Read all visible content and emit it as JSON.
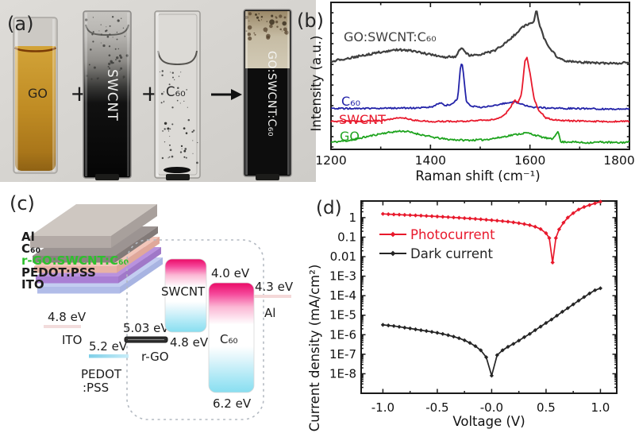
{
  "figure": {
    "background": "#ffffff",
    "panel_labels": {
      "a": "(a)",
      "b": "(b)",
      "c": "(c)",
      "d": "(d)"
    }
  },
  "panel_a": {
    "cuvettes": [
      {
        "label": "GO",
        "liquid_color": "#c08c24"
      },
      {
        "label": "SWCNT",
        "liquid_color": "#0a0a0a"
      },
      {
        "label": "C₆₀",
        "liquid_color": "#dcdad6"
      },
      {
        "label": "GO:SWCNT:C₆₀",
        "liquid_color": "#0d0d0d"
      }
    ],
    "operators": {
      "plus1": "+",
      "plus2": "+",
      "arrow_icon": "arrow-right"
    }
  },
  "panel_c": {
    "stack_layers": [
      {
        "label": "ITO",
        "label_color": "#1c1c1c",
        "top_color": "#c3cdf1",
        "front_color": "#b1bce8",
        "side_color": "#a8b4e2"
      },
      {
        "label": "PEDOT:PSS",
        "label_color": "#1c1c1c",
        "top_color": "#b992de",
        "front_color": "#a97fd4",
        "side_color": "#a078c8"
      },
      {
        "label": "r-GO:SWCNT:C₆₀",
        "label_color": "#2dc12d",
        "top_color": "#f2c6ba",
        "front_color": "#e8b2a6",
        "side_color": "#e0a89a"
      },
      {
        "label": "C₆₀",
        "label_color": "#1c1c1c",
        "top_color": "#9c9492",
        "front_color": "#8a8280",
        "side_color": "#827a78"
      },
      {
        "label": "Al",
        "label_color": "#1c1c1c",
        "top_color": "#cec7c1",
        "front_color": "#b3aaa6",
        "side_color": "#a8a09c"
      }
    ],
    "energy": {
      "ito": {
        "value": "4.8 eV",
        "label": "ITO"
      },
      "pedot": {
        "value": "5.2 eV",
        "label1": "PEDOT",
        "label2": ":PSS"
      },
      "rgo": {
        "value_top": "5.03 eV",
        "value_right": "4.8 eV",
        "label": "r-GO"
      },
      "swcnt": {
        "label": "SWCNT"
      },
      "c60": {
        "value_top": "4.0 eV",
        "value_bottom": "6.2 eV",
        "label": "C₆₀"
      },
      "al": {
        "value": "4.3 eV",
        "label": "Al"
      }
    },
    "box_gradient": {
      "top": "#ea0a66",
      "bottom": "#88def0"
    }
  },
  "chart_data": [
    {
      "id": "raman",
      "type": "line",
      "title": "",
      "xlabel": "Raman shift (cm⁻¹)",
      "ylabel": "Intensity (a.u.)",
      "xlim": [
        1200,
        1800
      ],
      "xticks": [
        1200,
        1400,
        1600,
        1800
      ],
      "xticks_minor": [
        1300,
        1500,
        1700
      ],
      "ylim": [
        0,
        1
      ],
      "grid": false,
      "legend_position": "inline-left",
      "series": [
        {
          "name": "GO",
          "color": "#1fa41f",
          "noise": 0.006,
          "width": 1.8,
          "points": [
            [
              1200,
              0.048
            ],
            [
              1235,
              0.06
            ],
            [
              1270,
              0.085
            ],
            [
              1305,
              0.11
            ],
            [
              1340,
              0.125
            ],
            [
              1352,
              0.122
            ],
            [
              1375,
              0.105
            ],
            [
              1405,
              0.082
            ],
            [
              1435,
              0.068
            ],
            [
              1470,
              0.062
            ],
            [
              1505,
              0.065
            ],
            [
              1535,
              0.078
            ],
            [
              1565,
              0.098
            ],
            [
              1592,
              0.112
            ],
            [
              1600,
              0.108
            ],
            [
              1622,
              0.085
            ],
            [
              1645,
              0.068
            ],
            [
              1656,
              0.125
            ],
            [
              1662,
              0.05
            ],
            [
              1680,
              0.052
            ],
            [
              1710,
              0.045
            ],
            [
              1745,
              0.05
            ],
            [
              1775,
              0.045
            ],
            [
              1800,
              0.05
            ]
          ]
        },
        {
          "name": "C₆₀",
          "color": "#2222a8",
          "noise": 0.005,
          "width": 1.8,
          "points": [
            [
              1200,
              0.278
            ],
            [
              1260,
              0.278
            ],
            [
              1320,
              0.28
            ],
            [
              1380,
              0.282
            ],
            [
              1405,
              0.29
            ],
            [
              1420,
              0.318
            ],
            [
              1430,
              0.298
            ],
            [
              1445,
              0.31
            ],
            [
              1455,
              0.35
            ],
            [
              1460,
              0.55
            ],
            [
              1463,
              0.6
            ],
            [
              1466,
              0.52
            ],
            [
              1472,
              0.33
            ],
            [
              1480,
              0.295
            ],
            [
              1500,
              0.285
            ],
            [
              1530,
              0.3
            ],
            [
              1552,
              0.315
            ],
            [
              1568,
              0.325
            ],
            [
              1585,
              0.305
            ],
            [
              1605,
              0.288
            ],
            [
              1640,
              0.28
            ],
            [
              1700,
              0.278
            ],
            [
              1750,
              0.275
            ],
            [
              1800,
              0.275
            ]
          ]
        },
        {
          "name": "SWCNT",
          "color": "#e8192c",
          "noise": 0.005,
          "width": 1.8,
          "points": [
            [
              1200,
              0.19
            ],
            [
              1250,
              0.192
            ],
            [
              1300,
              0.196
            ],
            [
              1330,
              0.212
            ],
            [
              1345,
              0.215
            ],
            [
              1365,
              0.198
            ],
            [
              1400,
              0.19
            ],
            [
              1450,
              0.19
            ],
            [
              1500,
              0.196
            ],
            [
              1530,
              0.205
            ],
            [
              1550,
              0.235
            ],
            [
              1563,
              0.3
            ],
            [
              1570,
              0.335
            ],
            [
              1576,
              0.315
            ],
            [
              1583,
              0.38
            ],
            [
              1590,
              0.6
            ],
            [
              1594,
              0.625
            ],
            [
              1600,
              0.52
            ],
            [
              1608,
              0.35
            ],
            [
              1618,
              0.26
            ],
            [
              1632,
              0.215
            ],
            [
              1650,
              0.2
            ],
            [
              1690,
              0.193
            ],
            [
              1740,
              0.19
            ],
            [
              1800,
              0.19
            ]
          ]
        },
        {
          "name": "GO:SWCNT:C₆₀",
          "color": "#3f3f3f",
          "noise": 0.007,
          "width": 2.2,
          "points": [
            [
              1200,
              0.6
            ],
            [
              1230,
              0.615
            ],
            [
              1265,
              0.64
            ],
            [
              1300,
              0.662
            ],
            [
              1335,
              0.678
            ],
            [
              1360,
              0.672
            ],
            [
              1395,
              0.648
            ],
            [
              1425,
              0.628
            ],
            [
              1450,
              0.632
            ],
            [
              1462,
              0.69
            ],
            [
              1470,
              0.66
            ],
            [
              1478,
              0.638
            ],
            [
              1500,
              0.645
            ],
            [
              1530,
              0.672
            ],
            [
              1560,
              0.75
            ],
            [
              1585,
              0.83
            ],
            [
              1600,
              0.862
            ],
            [
              1608,
              0.868
            ],
            [
              1613,
              0.952
            ],
            [
              1618,
              0.86
            ],
            [
              1628,
              0.76
            ],
            [
              1640,
              0.69
            ],
            [
              1655,
              0.625
            ],
            [
              1675,
              0.6
            ],
            [
              1700,
              0.592
            ],
            [
              1740,
              0.588
            ],
            [
              1770,
              0.585
            ],
            [
              1800,
              0.59
            ]
          ]
        }
      ]
    },
    {
      "id": "jv",
      "type": "line",
      "title": "",
      "xlabel": "Voltage (V)",
      "ylabel": "Current density (mA/cm²)",
      "xlim": [
        -1.2,
        1.15
      ],
      "yscale": "log",
      "ylim": [
        1e-09,
        7.1
      ],
      "grid": false,
      "legend_position": "top-left",
      "xticks": {
        "values": [
          -1.0,
          -0.5,
          0.0,
          0.5,
          1.0
        ],
        "labels": [
          "-1.0",
          "-0.5",
          "-0.0",
          "0.5",
          "1.0"
        ],
        "minors": [
          -0.75,
          -0.25,
          0.25,
          0.75
        ]
      },
      "yticks": {
        "values": [
          1,
          0.1,
          0.01,
          0.001,
          0.0001,
          1e-05,
          1e-06,
          1e-07,
          1e-08
        ],
        "labels": [
          "1",
          "0.1",
          "0.01",
          "1E-3",
          "1E-4",
          "1E-5",
          "1E-6",
          "1E-7",
          "1E-8"
        ]
      },
      "series": [
        {
          "name": "Photocurrent",
          "color": "#e8192c",
          "marker": "diamond",
          "width": 1.7,
          "points": [
            [
              -1.0,
              1.55
            ],
            [
              -0.95,
              1.5
            ],
            [
              -0.9,
              1.45
            ],
            [
              -0.85,
              1.42
            ],
            [
              -0.8,
              1.38
            ],
            [
              -0.75,
              1.34
            ],
            [
              -0.7,
              1.3
            ],
            [
              -0.65,
              1.26
            ],
            [
              -0.6,
              1.22
            ],
            [
              -0.55,
              1.18
            ],
            [
              -0.5,
              1.14
            ],
            [
              -0.45,
              1.1
            ],
            [
              -0.4,
              1.06
            ],
            [
              -0.35,
              1.02
            ],
            [
              -0.3,
              0.98
            ],
            [
              -0.25,
              0.94
            ],
            [
              -0.2,
              0.9
            ],
            [
              -0.15,
              0.86
            ],
            [
              -0.1,
              0.82
            ],
            [
              -0.05,
              0.78
            ],
            [
              0,
              0.74
            ],
            [
              0.05,
              0.7
            ],
            [
              0.1,
              0.66
            ],
            [
              0.15,
              0.62
            ],
            [
              0.2,
              0.57
            ],
            [
              0.25,
              0.52
            ],
            [
              0.3,
              0.47
            ],
            [
              0.35,
              0.41
            ],
            [
              0.4,
              0.34
            ],
            [
              0.45,
              0.26
            ],
            [
              0.5,
              0.16
            ],
            [
              0.53,
              0.09
            ],
            [
              0.56,
              0.005
            ],
            [
              0.59,
              0.09
            ],
            [
              0.62,
              0.25
            ],
            [
              0.66,
              0.55
            ],
            [
              0.7,
              1.0
            ],
            [
              0.75,
              1.7
            ],
            [
              0.8,
              2.6
            ],
            [
              0.85,
              3.5
            ],
            [
              0.9,
              4.4
            ],
            [
              0.95,
              5.4
            ],
            [
              1.0,
              6.5
            ]
          ]
        },
        {
          "name": "Dark current",
          "color": "#252525",
          "marker": "diamond",
          "width": 1.7,
          "points": [
            [
              -1.0,
              3.2e-06
            ],
            [
              -0.95,
              3e-06
            ],
            [
              -0.9,
              2.8e-06
            ],
            [
              -0.85,
              2.55e-06
            ],
            [
              -0.8,
              2.3e-06
            ],
            [
              -0.75,
              2.1e-06
            ],
            [
              -0.7,
              1.9e-06
            ],
            [
              -0.65,
              1.7e-06
            ],
            [
              -0.6,
              1.55e-06
            ],
            [
              -0.55,
              1.4e-06
            ],
            [
              -0.5,
              1.25e-06
            ],
            [
              -0.45,
              1.1e-06
            ],
            [
              -0.4,
              9.5e-07
            ],
            [
              -0.35,
              8e-07
            ],
            [
              -0.3,
              6.6e-07
            ],
            [
              -0.25,
              5.2e-07
            ],
            [
              -0.2,
              3.8e-07
            ],
            [
              -0.15,
              2.6e-07
            ],
            [
              -0.1,
              1.6e-07
            ],
            [
              -0.05,
              7e-08
            ],
            [
              0.0,
              8e-09
            ],
            [
              0.05,
              9e-08
            ],
            [
              0.1,
              1.6e-07
            ],
            [
              0.15,
              2.4e-07
            ],
            [
              0.2,
              3.4e-07
            ],
            [
              0.25,
              5e-07
            ],
            [
              0.3,
              7.5e-07
            ],
            [
              0.35,
              1.1e-06
            ],
            [
              0.4,
              1.7e-06
            ],
            [
              0.45,
              2.6e-06
            ],
            [
              0.5,
              4e-06
            ],
            [
              0.55,
              6e-06
            ],
            [
              0.6,
              9.5e-06
            ],
            [
              0.65,
              1.5e-05
            ],
            [
              0.7,
              2.3e-05
            ],
            [
              0.75,
              3.6e-05
            ],
            [
              0.8,
              5.6e-05
            ],
            [
              0.85,
              8.5e-05
            ],
            [
              0.9,
              0.00013
            ],
            [
              0.95,
              0.00019
            ],
            [
              1.0,
              0.00024
            ]
          ]
        }
      ]
    }
  ]
}
